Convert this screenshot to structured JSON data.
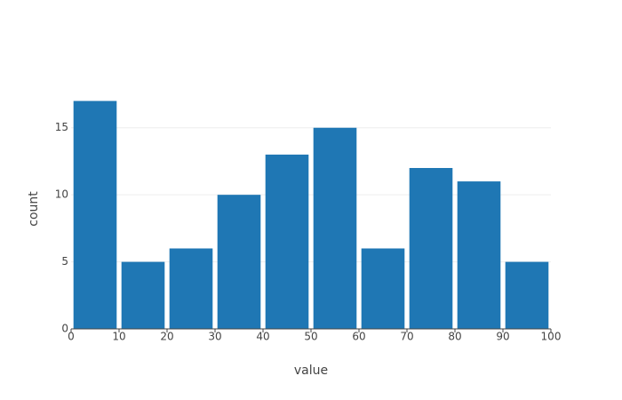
{
  "chart_data": {
    "type": "histogram",
    "x_label": "value",
    "y_label": "count",
    "bins": [
      0,
      10,
      20,
      30,
      40,
      50,
      60,
      70,
      80,
      90,
      100
    ],
    "values": [
      17,
      5,
      6,
      10,
      13,
      15,
      6,
      12,
      11,
      5
    ],
    "color": "#1f77b4",
    "xlim": [
      0,
      100
    ],
    "xticks": [
      0,
      10,
      20,
      30,
      40,
      50,
      60,
      70,
      80,
      90,
      100
    ],
    "ylim": [
      0,
      17.9
    ],
    "yticks": [
      0,
      5,
      10,
      15
    ],
    "grid": true
  }
}
